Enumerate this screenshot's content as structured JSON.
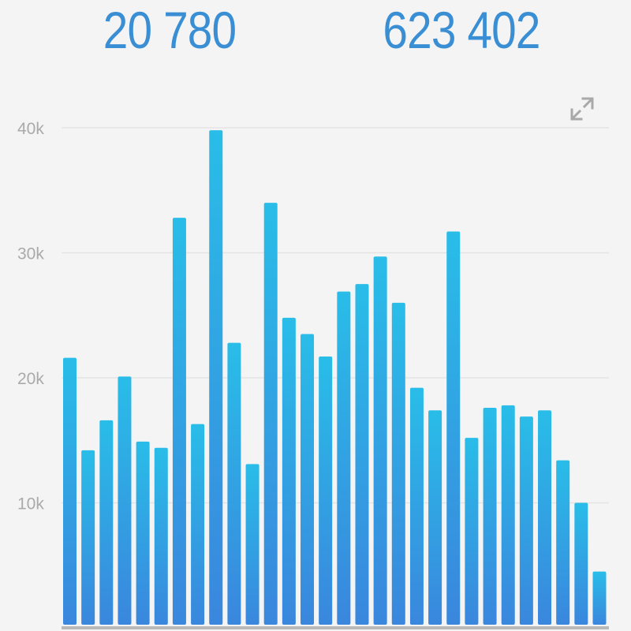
{
  "header": {
    "stat_left": "20 780",
    "stat_right": "623 402"
  },
  "icons": {
    "expand": "expand-arrows-icon"
  },
  "colors": {
    "value_text": "#3a8ed4",
    "bar_top": "#29bde8",
    "bar_bottom": "#3a87dd",
    "grid": "#e3e3e3",
    "tick_text": "#aaaaaa",
    "baseline": "#b9b9b9",
    "background": "#f4f4f4"
  },
  "chart_data": {
    "type": "bar",
    "title": "",
    "xlabel": "",
    "ylabel": "",
    "ylim": [
      0,
      40000
    ],
    "grid": true,
    "yticks": [
      10000,
      20000,
      30000,
      40000
    ],
    "ytick_labels": [
      "10k",
      "20k",
      "30k",
      "40k"
    ],
    "values": [
      21600,
      14200,
      16600,
      20100,
      14900,
      14400,
      32800,
      16300,
      39800,
      22800,
      13100,
      34000,
      24800,
      23500,
      21700,
      26900,
      27500,
      29700,
      26000,
      19200,
      17400,
      31700,
      15200,
      17600,
      17800,
      16900,
      17400,
      13400,
      10000,
      4500
    ]
  }
}
